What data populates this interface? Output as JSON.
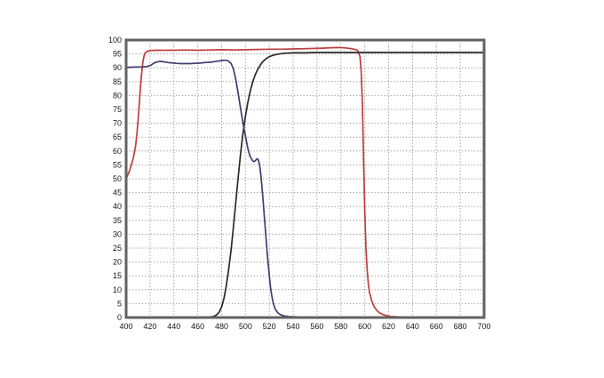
{
  "page": {
    "background_color": "#ffffff",
    "title": ""
  },
  "chart_data": {
    "type": "line",
    "title": "",
    "subtitle": "",
    "xlabel": "",
    "ylabel": "",
    "xlim": [
      400,
      700
    ],
    "ylim": [
      0,
      100
    ],
    "x_ticks": [
      400,
      420,
      440,
      460,
      480,
      500,
      520,
      540,
      560,
      580,
      600,
      620,
      640,
      660,
      680,
      700
    ],
    "y_ticks": [
      0,
      5,
      10,
      15,
      20,
      25,
      30,
      35,
      40,
      45,
      50,
      55,
      60,
      65,
      70,
      75,
      80,
      85,
      90,
      95,
      100
    ],
    "grid": "dotted",
    "grid_color": "#999999",
    "border_color": "#626262",
    "legend": "none",
    "series": [
      {
        "name": "red-bandpass-curve",
        "color": "#bf3e3e",
        "points": [
          [
            400,
            50
          ],
          [
            402,
            52
          ],
          [
            404,
            54.5
          ],
          [
            406,
            57.5
          ],
          [
            408,
            62
          ],
          [
            409,
            66
          ],
          [
            410,
            71
          ],
          [
            411,
            77
          ],
          [
            412,
            83
          ],
          [
            413,
            88
          ],
          [
            414,
            92
          ],
          [
            415,
            94.3
          ],
          [
            416,
            95.4
          ],
          [
            418,
            96.0
          ],
          [
            420,
            96.2
          ],
          [
            425,
            96.3
          ],
          [
            430,
            96.3
          ],
          [
            440,
            96.3
          ],
          [
            450,
            96.4
          ],
          [
            460,
            96.3
          ],
          [
            470,
            96.4
          ],
          [
            480,
            96.5
          ],
          [
            490,
            96.4
          ],
          [
            500,
            96.5
          ],
          [
            510,
            96.6
          ],
          [
            520,
            96.7
          ],
          [
            530,
            96.7
          ],
          [
            540,
            96.8
          ],
          [
            550,
            96.9
          ],
          [
            560,
            97.0
          ],
          [
            567,
            97.1
          ],
          [
            572,
            97.2
          ],
          [
            577,
            97.3
          ],
          [
            582,
            97.2
          ],
          [
            587,
            97.0
          ],
          [
            591,
            96.7
          ],
          [
            594,
            96.3
          ],
          [
            596,
            94
          ],
          [
            597,
            89
          ],
          [
            598,
            77
          ],
          [
            599,
            57
          ],
          [
            600,
            38
          ],
          [
            601,
            25
          ],
          [
            602,
            17
          ],
          [
            603,
            12
          ],
          [
            604,
            9
          ],
          [
            606,
            5.8
          ],
          [
            608,
            3.8
          ],
          [
            610,
            2.6
          ],
          [
            612,
            1.8
          ],
          [
            615,
            1.1
          ],
          [
            618,
            0.7
          ],
          [
            622,
            0.4
          ],
          [
            628,
            0.25
          ],
          [
            640,
            0.2
          ],
          [
            660,
            0.15
          ],
          [
            680,
            0.15
          ],
          [
            700,
            0.15
          ]
        ]
      },
      {
        "name": "black-longpass-curve",
        "color": "#2a2a2a",
        "points": [
          [
            400,
            0.1
          ],
          [
            420,
            0.1
          ],
          [
            440,
            0.1
          ],
          [
            460,
            0.1
          ],
          [
            468,
            0.15
          ],
          [
            472,
            0.3
          ],
          [
            474,
            0.5
          ],
          [
            476,
            1
          ],
          [
            478,
            2
          ],
          [
            480,
            3.8
          ],
          [
            482,
            7
          ],
          [
            484,
            11.5
          ],
          [
            486,
            17.5
          ],
          [
            488,
            24.5
          ],
          [
            490,
            33
          ],
          [
            492,
            42
          ],
          [
            494,
            51
          ],
          [
            496,
            59.5
          ],
          [
            498,
            66.5
          ],
          [
            499,
            69.5
          ],
          [
            500,
            72.5
          ],
          [
            502,
            77.5
          ],
          [
            504,
            81.5
          ],
          [
            506,
            84.8
          ],
          [
            508,
            87.3
          ],
          [
            510,
            89.2
          ],
          [
            512,
            90.7
          ],
          [
            514,
            91.9
          ],
          [
            516,
            92.8
          ],
          [
            518,
            93.5
          ],
          [
            520,
            94
          ],
          [
            523,
            94.5
          ],
          [
            526,
            94.8
          ],
          [
            530,
            95.1
          ],
          [
            535,
            95.3
          ],
          [
            540,
            95.4
          ],
          [
            550,
            95.4
          ],
          [
            560,
            95.5
          ],
          [
            580,
            95.5
          ],
          [
            600,
            95.5
          ],
          [
            625,
            95.5
          ],
          [
            650,
            95.5
          ],
          [
            675,
            95.5
          ],
          [
            700,
            95.5
          ]
        ]
      },
      {
        "name": "blue-shortpass-curve",
        "color": "#3d3e6e",
        "points": [
          [
            400,
            90.2
          ],
          [
            404,
            90.2
          ],
          [
            408,
            90.3
          ],
          [
            412,
            90.3
          ],
          [
            416,
            90.4
          ],
          [
            419,
            90.6
          ],
          [
            421,
            91.0
          ],
          [
            423,
            91.6
          ],
          [
            425,
            92.0
          ],
          [
            427,
            92.2
          ],
          [
            429,
            92.3
          ],
          [
            432,
            92.1
          ],
          [
            435,
            91.9
          ],
          [
            438,
            91.8
          ],
          [
            442,
            91.6
          ],
          [
            446,
            91.5
          ],
          [
            450,
            91.5
          ],
          [
            454,
            91.5
          ],
          [
            458,
            91.6
          ],
          [
            462,
            91.7
          ],
          [
            466,
            91.9
          ],
          [
            470,
            92.0
          ],
          [
            474,
            92.2
          ],
          [
            477,
            92.4
          ],
          [
            480,
            92.6
          ],
          [
            482,
            92.7
          ],
          [
            484,
            92.7
          ],
          [
            486,
            92.4
          ],
          [
            488,
            91.5
          ],
          [
            490,
            89.5
          ],
          [
            492,
            85.5
          ],
          [
            494,
            80.5
          ],
          [
            496,
            75
          ],
          [
            498,
            70
          ],
          [
            500,
            65.5
          ],
          [
            502,
            61
          ],
          [
            503,
            59.3
          ],
          [
            504,
            58
          ],
          [
            506,
            56.5
          ],
          [
            507,
            56.2
          ],
          [
            508,
            56.4
          ],
          [
            509,
            56.9
          ],
          [
            510,
            57.2
          ],
          [
            511,
            56.6
          ],
          [
            512,
            54.5
          ],
          [
            513,
            51
          ],
          [
            514,
            46.5
          ],
          [
            515,
            41
          ],
          [
            516,
            35.5
          ],
          [
            517,
            30
          ],
          [
            518,
            24.5
          ],
          [
            519,
            19.5
          ],
          [
            520,
            15
          ],
          [
            521,
            11
          ],
          [
            522,
            8
          ],
          [
            523,
            5.8
          ],
          [
            524,
            4.2
          ],
          [
            525,
            3
          ],
          [
            527,
            1.8
          ],
          [
            529,
            1.1
          ],
          [
            532,
            0.6
          ],
          [
            536,
            0.35
          ],
          [
            545,
            0.2
          ],
          [
            560,
            0.15
          ],
          [
            600,
            0.15
          ],
          [
            650,
            0.15
          ],
          [
            700,
            0.15
          ]
        ]
      }
    ]
  }
}
